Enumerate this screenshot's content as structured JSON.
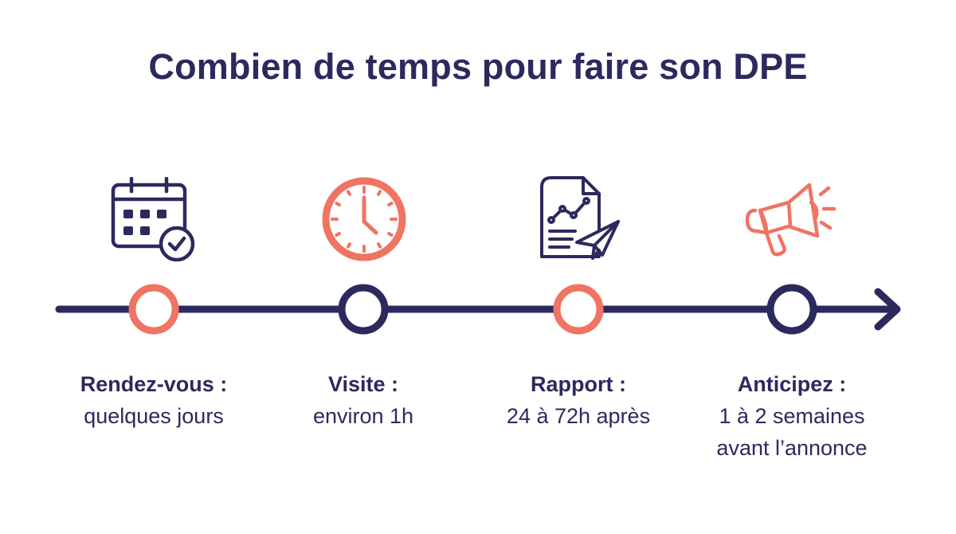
{
  "title": "Combien de temps pour faire son DPE",
  "colors": {
    "navy": "#2b2a5e",
    "coral": "#ef7463"
  },
  "steps": [
    {
      "icon": "calendar-check-icon",
      "marker_color": "coral",
      "heading": "Rendez-vous :",
      "detail_lines": [
        "quelques jours"
      ]
    },
    {
      "icon": "clock-icon",
      "marker_color": "navy",
      "heading": "Visite :",
      "detail_lines": [
        "environ 1h"
      ]
    },
    {
      "icon": "report-send-icon",
      "marker_color": "coral",
      "heading": "Rapport :",
      "detail_lines": [
        "24 à 72h après"
      ]
    },
    {
      "icon": "megaphone-icon",
      "marker_color": "navy",
      "heading": "Anticipez :",
      "detail_lines": [
        "1 à 2 semaines",
        "avant l’annonce"
      ]
    }
  ]
}
